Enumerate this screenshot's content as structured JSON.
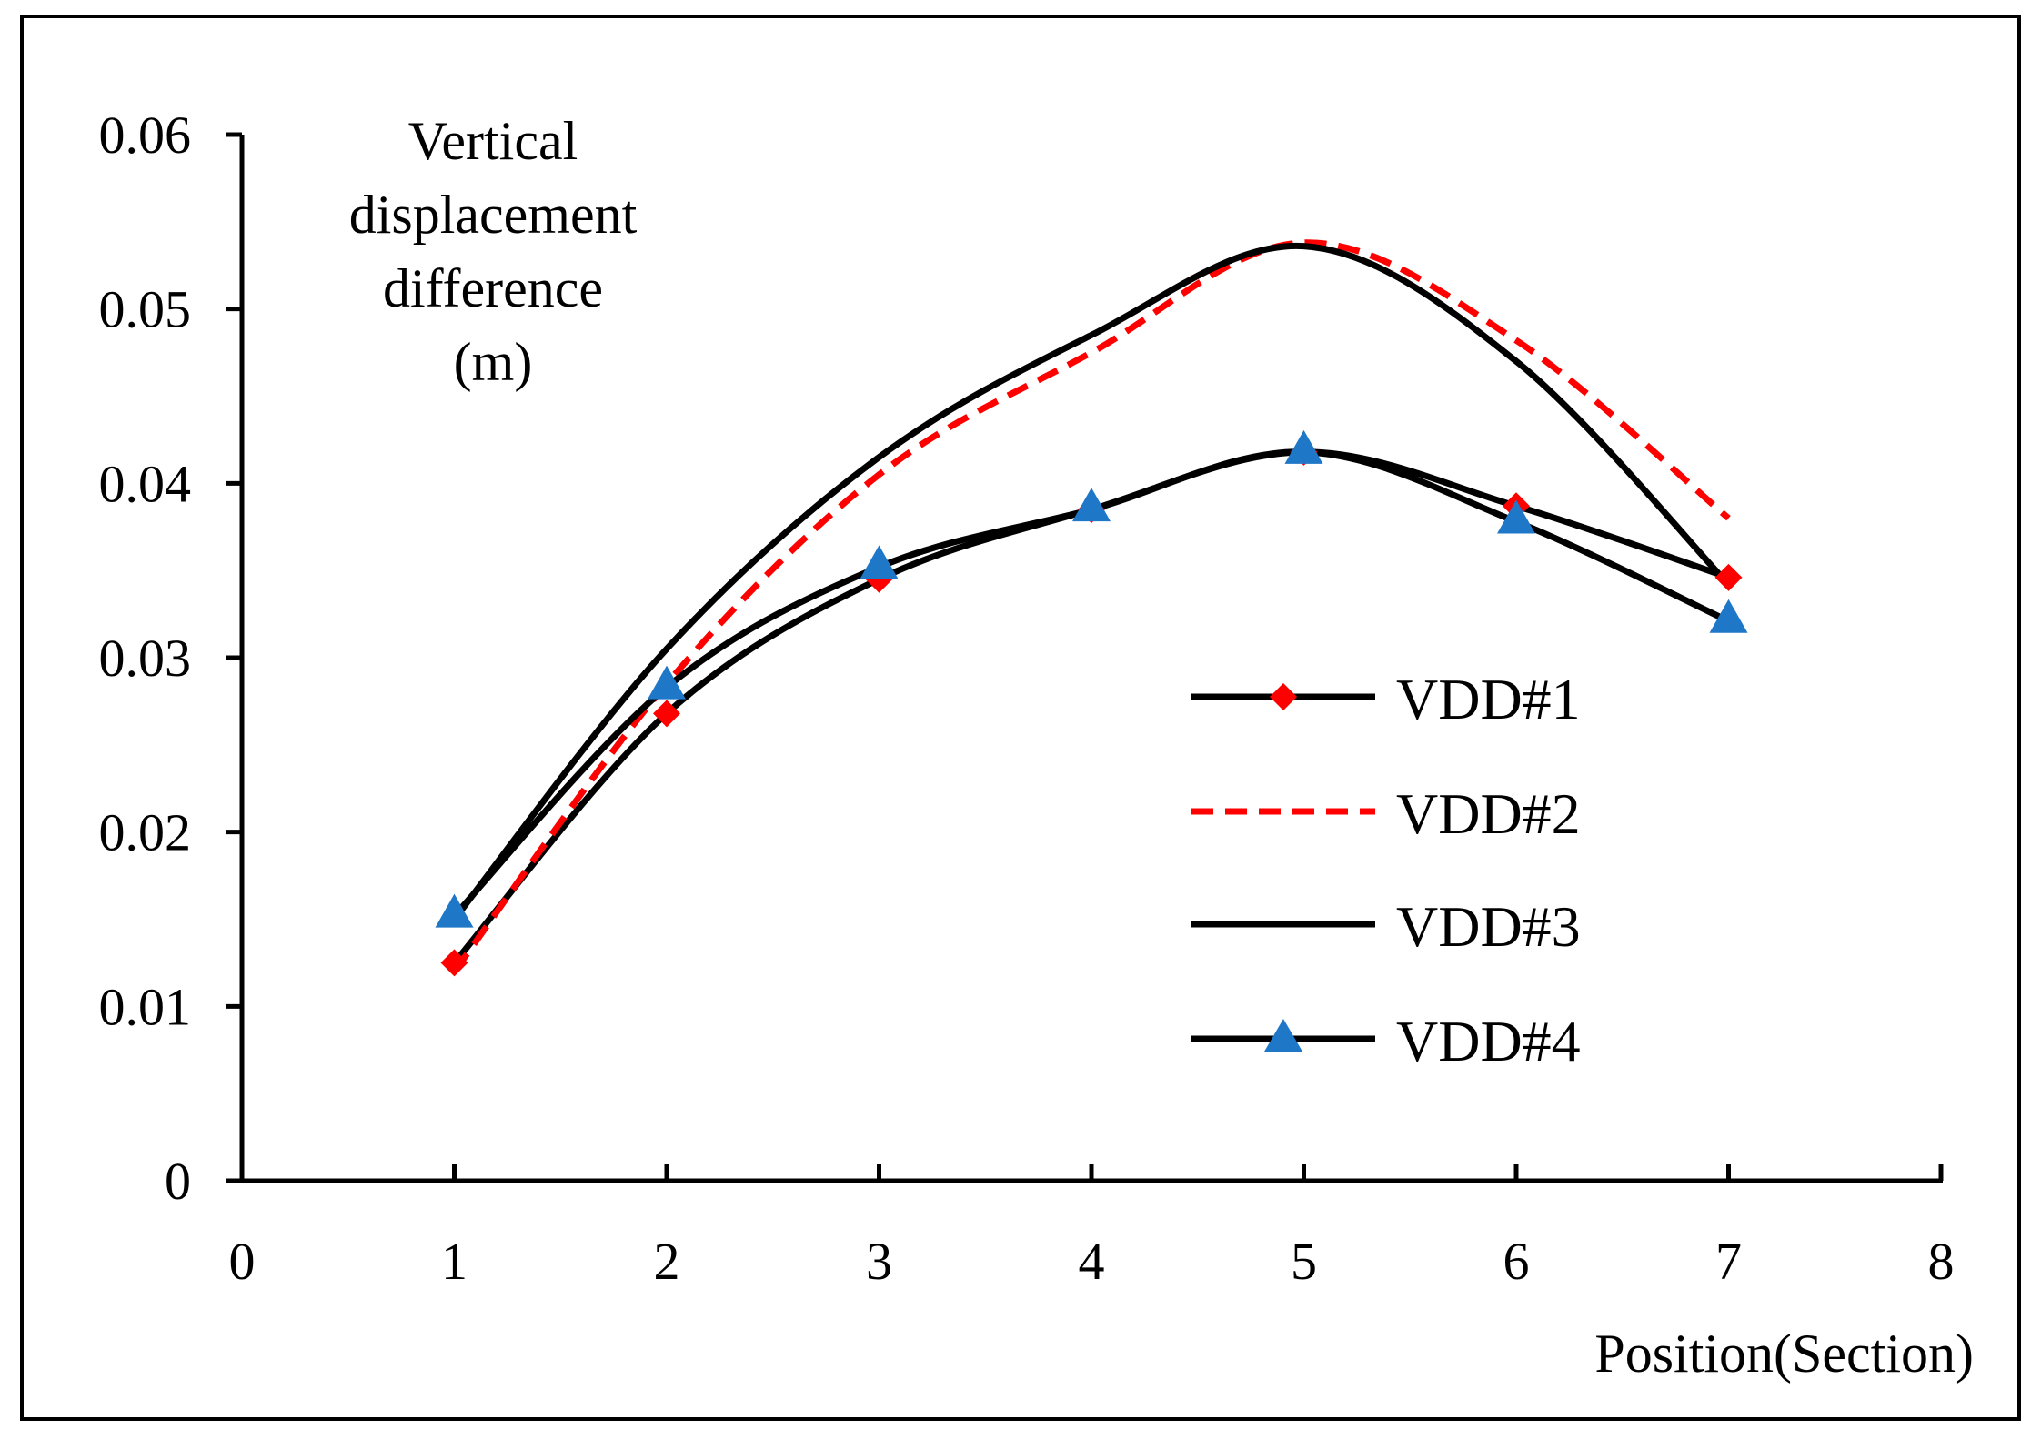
{
  "chart_data": {
    "type": "line",
    "title": "",
    "xlabel": "Position(Section)",
    "ylabel_lines": [
      "Vertical",
      "displacement",
      "difference",
      "(m)"
    ],
    "xlim": [
      0,
      8
    ],
    "ylim": [
      0,
      0.06
    ],
    "xticks": [
      "0",
      "1",
      "2",
      "3",
      "4",
      "5",
      "6",
      "7",
      "8"
    ],
    "yticks": [
      "0",
      "0.01",
      "0.02",
      "0.03",
      "0.04",
      "0.05",
      "0.06"
    ],
    "grid": false,
    "legend_position": "center-right",
    "x": [
      1,
      2,
      3,
      4,
      5,
      6,
      7
    ],
    "series": [
      {
        "name": "VDD#1",
        "values": [
          0.0125,
          0.0268,
          0.0345,
          0.0385,
          0.0418,
          0.0387,
          0.0346
        ],
        "color": "#000000",
        "marker": "diamond",
        "marker_color": "#ff0000",
        "dash": "solid"
      },
      {
        "name": "VDD#2",
        "values": [
          0.012,
          0.0285,
          0.0405,
          0.0475,
          0.0538,
          0.0482,
          0.038
        ],
        "color": "#ff0000",
        "marker": "none",
        "marker_color": "",
        "dash": "dashed"
      },
      {
        "name": "VDD#3",
        "values": [
          0.015,
          0.0305,
          0.0415,
          0.0485,
          0.0536,
          0.047,
          0.0342
        ],
        "color": "#000000",
        "marker": "none",
        "marker_color": "",
        "dash": "solid"
      },
      {
        "name": "VDD#4",
        "values": [
          0.0152,
          0.0283,
          0.0352,
          0.0385,
          0.0418,
          0.0378,
          0.0321
        ],
        "color": "#000000",
        "marker": "triangle",
        "marker_color": "#1f77c8",
        "dash": "solid"
      }
    ]
  }
}
